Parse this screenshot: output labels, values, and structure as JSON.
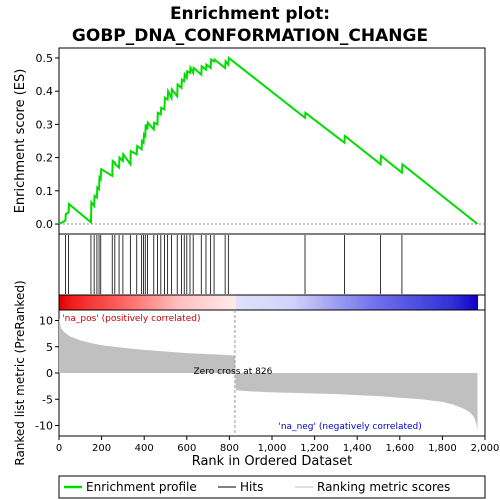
{
  "chart_data": {
    "type": "line",
    "title": "Enrichment plot:\nGOBP_DNA_CONFORMATION_CHANGE",
    "es_panel": {
      "ylabel": "Enrichment score (ES)",
      "ylim": [
        -0.03,
        0.53
      ],
      "yticks": [
        0.0,
        0.1,
        0.2,
        0.3,
        0.4,
        0.5
      ],
      "ytick_labels": [
        "0.0",
        "0.1",
        "0.2",
        "0.3",
        "0.4",
        "0.5"
      ],
      "series": [
        {
          "name": "Enrichment profile",
          "color": "#00dd00",
          "x": [
            0,
            30,
            32,
            45,
            47,
            150,
            152,
            165,
            167,
            178,
            180,
            188,
            190,
            196,
            198,
            250,
            252,
            262,
            264,
            282,
            284,
            300,
            302,
            335,
            337,
            365,
            367,
            388,
            390,
            397,
            399,
            405,
            407,
            415,
            417,
            445,
            447,
            462,
            464,
            478,
            480,
            495,
            497,
            510,
            512,
            528,
            530,
            555,
            557,
            575,
            577,
            588,
            590,
            600,
            602,
            615,
            617,
            630,
            632,
            668,
            670,
            690,
            692,
            712,
            714,
            728,
            730,
            780,
            782,
            795,
            797,
            1155,
            1157,
            1340,
            1342,
            1510,
            1512,
            1610,
            1612,
            1965
          ],
          "y": [
            0.0,
            0.01,
            0.03,
            0.035,
            0.06,
            0.005,
            0.065,
            0.055,
            0.085,
            0.08,
            0.11,
            0.105,
            0.14,
            0.135,
            0.165,
            0.145,
            0.19,
            0.185,
            0.18,
            0.17,
            0.2,
            0.19,
            0.21,
            0.18,
            0.22,
            0.21,
            0.235,
            0.225,
            0.25,
            0.245,
            0.27,
            0.265,
            0.3,
            0.285,
            0.305,
            0.285,
            0.305,
            0.3,
            0.335,
            0.33,
            0.35,
            0.345,
            0.38,
            0.375,
            0.4,
            0.38,
            0.405,
            0.385,
            0.42,
            0.41,
            0.435,
            0.43,
            0.45,
            0.44,
            0.46,
            0.455,
            0.47,
            0.455,
            0.47,
            0.45,
            0.475,
            0.465,
            0.48,
            0.47,
            0.495,
            0.49,
            0.495,
            0.47,
            0.49,
            0.48,
            0.5,
            0.32,
            0.335,
            0.245,
            0.265,
            0.18,
            0.205,
            0.155,
            0.18,
            0.0
          ]
        }
      ]
    },
    "hits": [
      30,
      45,
      150,
      165,
      178,
      188,
      196,
      250,
      262,
      282,
      300,
      335,
      365,
      388,
      397,
      405,
      415,
      445,
      462,
      478,
      495,
      510,
      528,
      555,
      575,
      588,
      600,
      615,
      630,
      668,
      690,
      712,
      728,
      780,
      795,
      1155,
      1340,
      1510,
      1610
    ],
    "ranked_panel": {
      "xlabel": "Rank in Ordered Dataset",
      "ylabel": "Ranked list metric (PreRanked)",
      "xlim": [
        0,
        2000
      ],
      "xticks": [
        0,
        200,
        400,
        600,
        800,
        1000,
        1200,
        1400,
        1600,
        1800,
        2000
      ],
      "xtick_labels": [
        "0",
        "200",
        "400",
        "600",
        "800",
        "1,000",
        "1,200",
        "1,400",
        "1,600",
        "1,800",
        "2,000"
      ],
      "ylim": [
        -12,
        12
      ],
      "yticks": [
        -10,
        -5,
        0,
        5,
        10
      ],
      "ytick_labels": [
        "-10",
        "-5",
        "0",
        "5",
        "10"
      ],
      "metric_profile": {
        "x": [
          0,
          10,
          25,
          50,
          100,
          150,
          200,
          300,
          400,
          500,
          600,
          700,
          800,
          826,
          830,
          900,
          1000,
          1100,
          1200,
          1300,
          1400,
          1500,
          1600,
          1700,
          1800,
          1850,
          1900,
          1930,
          1950,
          1960,
          1965
        ],
        "y": [
          10.5,
          8.5,
          7.8,
          7.0,
          6.2,
          5.7,
          5.3,
          4.8,
          4.4,
          4.1,
          3.8,
          3.6,
          3.4,
          3.3,
          -3.3,
          -3.5,
          -3.7,
          -3.8,
          -3.9,
          -4.0,
          -4.2,
          -4.4,
          -4.7,
          -5.0,
          -5.5,
          -6.0,
          -6.8,
          -7.5,
          -8.5,
          -9.8,
          -11.0
        ]
      },
      "zero_cross_label": "Zero cross at 826",
      "pos_label": "'na_pos' (positively correlated)",
      "neg_label": "'na_neg' (negatively correlated)"
    },
    "legend": [
      {
        "label": "Enrichment profile",
        "color": "#00dd00"
      },
      {
        "label": "Hits",
        "color": "#000000"
      },
      {
        "label": "Ranking metric scores",
        "color": "#c0c0c0"
      }
    ],
    "colors": {
      "profile": "#00dd00",
      "metric_fill": "#c0c0c0",
      "pos_text": "#cc0000",
      "neg_text": "#0000cc"
    }
  }
}
